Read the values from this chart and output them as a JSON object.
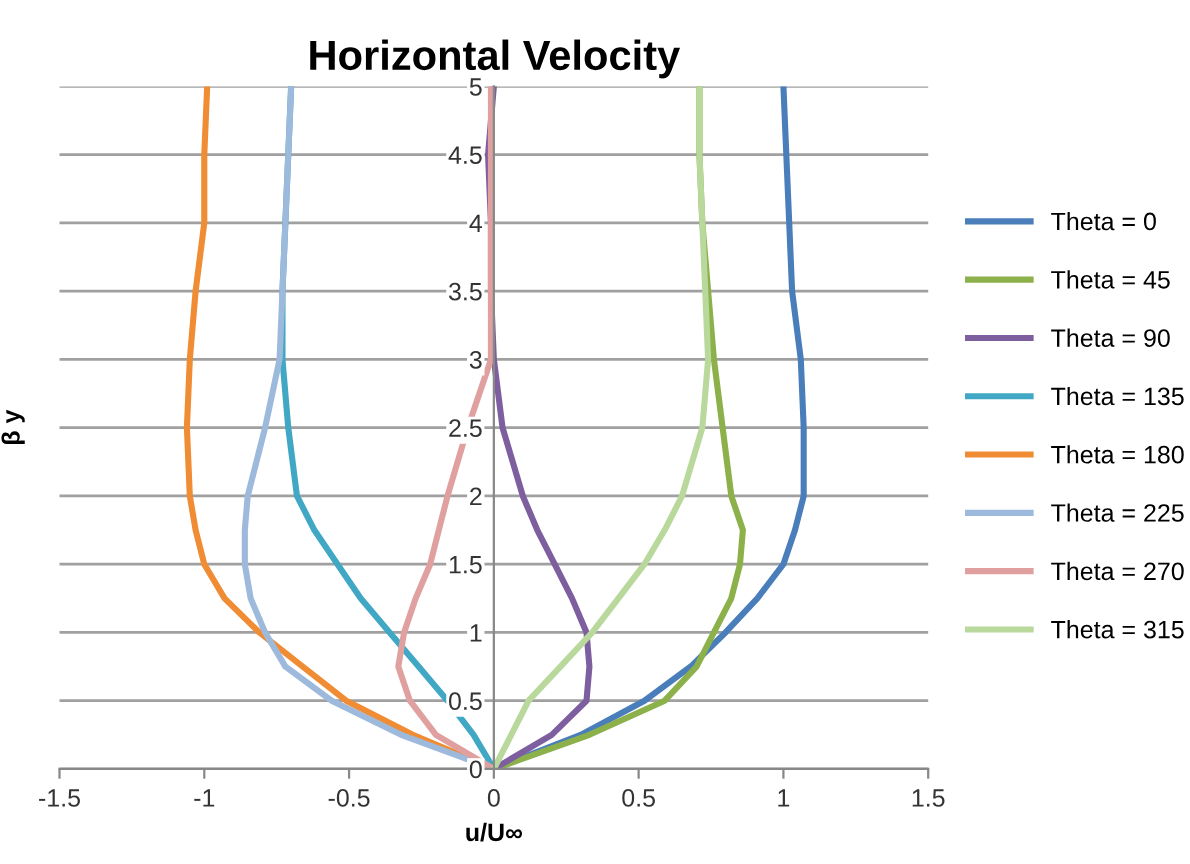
{
  "chart_data": {
    "type": "line",
    "title": "Horizontal Velocity",
    "xlabel": "u/U∞",
    "ylabel": "β y",
    "xlim": [
      -1.5,
      1.5
    ],
    "xticks": [
      -1.5,
      -1,
      -0.5,
      0,
      0.5,
      1,
      1.5
    ],
    "ylim": [
      0,
      5
    ],
    "yticks": [
      0,
      0.5,
      1,
      1.5,
      2,
      2.5,
      3,
      3.5,
      4,
      4.5,
      5
    ],
    "grid": "y",
    "legend": "right",
    "marker": "none",
    "line_style": "solid",
    "series": [
      {
        "name": "Theta = 0",
        "color": "#4a7ebb",
        "x": [
          0,
          0.3,
          0.52,
          0.68,
          0.8,
          0.91,
          1.0,
          1.04,
          1.07,
          1.07,
          1.06,
          1.03,
          1.02,
          1.01,
          1.0
        ],
        "values": [
          0,
          0.25,
          0.5,
          0.75,
          1,
          1.25,
          1.5,
          1.75,
          2,
          2.5,
          3,
          3.5,
          4,
          4.5,
          5
        ]
      },
      {
        "name": "Theta = 45",
        "color": "#8cb04a",
        "x": [
          0,
          0.33,
          0.59,
          0.7,
          0.76,
          0.82,
          0.85,
          0.86,
          0.82,
          0.79,
          0.76,
          0.74,
          0.72,
          0.71,
          0.71
        ],
        "values": [
          0,
          0.25,
          0.5,
          0.75,
          1,
          1.25,
          1.5,
          1.75,
          2,
          2.5,
          3,
          3.5,
          4,
          4.5,
          5
        ]
      },
      {
        "name": "Theta = 90",
        "color": "#7d5fa0",
        "x": [
          0,
          0.2,
          0.32,
          0.33,
          0.32,
          0.27,
          0.21,
          0.15,
          0.1,
          0.03,
          0.0,
          -0.01,
          -0.01,
          -0.02,
          0.0
        ],
        "values": [
          0,
          0.25,
          0.5,
          0.75,
          1,
          1.25,
          1.5,
          1.75,
          2,
          2.5,
          3,
          3.5,
          4,
          4.5,
          5
        ]
      },
      {
        "name": "Theta = 135",
        "color": "#40a8c4",
        "x": [
          0,
          -0.07,
          -0.16,
          -0.26,
          -0.36,
          -0.46,
          -0.54,
          -0.62,
          -0.68,
          -0.71,
          -0.73,
          -0.73,
          -0.72,
          -0.71,
          -0.7
        ],
        "values": [
          0,
          0.25,
          0.5,
          0.75,
          1,
          1.25,
          1.5,
          1.75,
          2,
          2.5,
          3,
          3.5,
          4,
          4.5,
          5
        ]
      },
      {
        "name": "Theta = 180",
        "color": "#f08c34",
        "x": [
          0,
          -0.28,
          -0.51,
          -0.66,
          -0.81,
          -0.93,
          -1.0,
          -1.03,
          -1.05,
          -1.06,
          -1.05,
          -1.03,
          -1.0,
          -1.0,
          -0.99
        ],
        "values": [
          0,
          0.25,
          0.5,
          0.75,
          1,
          1.25,
          1.5,
          1.75,
          2,
          2.5,
          3,
          3.5,
          4,
          4.5,
          5
        ]
      },
      {
        "name": "Theta = 225",
        "color": "#9db9dc",
        "x": [
          0,
          -0.32,
          -0.56,
          -0.72,
          -0.79,
          -0.84,
          -0.86,
          -0.86,
          -0.85,
          -0.79,
          -0.74,
          -0.73,
          -0.72,
          -0.71,
          -0.7
        ],
        "values": [
          0,
          0.25,
          0.5,
          0.75,
          1,
          1.25,
          1.5,
          1.75,
          2,
          2.5,
          3,
          3.5,
          4,
          4.5,
          5
        ]
      },
      {
        "name": "Theta = 270",
        "color": "#e0a0a0",
        "x": [
          0,
          -0.2,
          -0.29,
          -0.33,
          -0.31,
          -0.27,
          -0.22,
          -0.19,
          -0.16,
          -0.09,
          -0.01,
          -0.01,
          -0.01,
          -0.01,
          -0.01
        ],
        "values": [
          0,
          0.25,
          0.5,
          0.75,
          1,
          1.25,
          1.5,
          1.75,
          2,
          2.5,
          3,
          3.5,
          4,
          4.5,
          5
        ]
      },
      {
        "name": "Theta = 315",
        "color": "#b8d89c",
        "x": [
          0,
          0.06,
          0.12,
          0.23,
          0.34,
          0.43,
          0.52,
          0.59,
          0.65,
          0.72,
          0.74,
          0.73,
          0.72,
          0.71,
          0.71
        ],
        "values": [
          0,
          0.25,
          0.5,
          0.75,
          1,
          1.25,
          1.5,
          1.75,
          2,
          2.5,
          3,
          3.5,
          4,
          4.5,
          5
        ]
      }
    ]
  }
}
